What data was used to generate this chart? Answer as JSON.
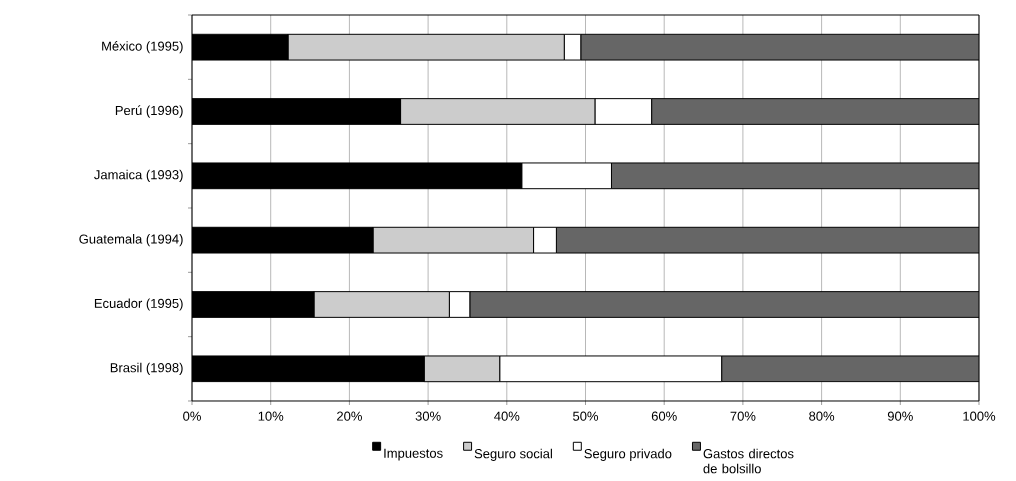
{
  "chart_data": {
    "type": "bar",
    "orientation": "horizontal",
    "stacked": true,
    "categories": [
      "México (1995)",
      "Perú (1996)",
      "Jamaica (1993)",
      "Guatemala (1994)",
      "Ecuador (1995)",
      "Brasil (1998)"
    ],
    "series": [
      {
        "name": "Impuestos",
        "color": "#000000",
        "values": [
          12.2,
          26.5,
          41.9,
          23.0,
          15.5,
          29.5
        ]
      },
      {
        "name": "Seguro social",
        "color": "#cccccc",
        "values": [
          35.1,
          24.7,
          0,
          20.4,
          17.2,
          9.6
        ]
      },
      {
        "name": "Seguro privado",
        "color": "#ffffff",
        "values": [
          2.1,
          7.2,
          11.4,
          2.9,
          2.6,
          28.2
        ]
      },
      {
        "name": "Gastos directos de bolsillo",
        "color": "#666666",
        "values": [
          50.6,
          41.6,
          46.7,
          53.7,
          64.7,
          32.7
        ]
      }
    ],
    "xlim": [
      0,
      100
    ],
    "xticks": [
      {
        "value": 0,
        "label": "0%"
      },
      {
        "value": 10,
        "label": "10%"
      },
      {
        "value": 20,
        "label": "20%"
      },
      {
        "value": 30,
        "label": "30%"
      },
      {
        "value": 40,
        "label": "40%"
      },
      {
        "value": 50,
        "label": "50%"
      },
      {
        "value": 60,
        "label": "60%"
      },
      {
        "value": 70,
        "label": "70%"
      },
      {
        "value": 80,
        "label": "80%"
      },
      {
        "value": 90,
        "label": "90%"
      },
      {
        "value": 100,
        "label": "100%"
      }
    ],
    "grid": "x",
    "legend": "bottom"
  }
}
